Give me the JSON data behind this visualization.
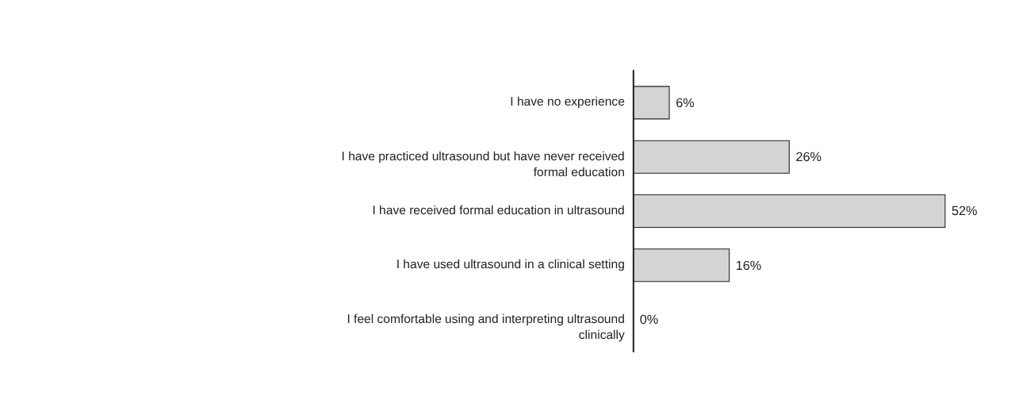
{
  "chart_data": {
    "type": "bar",
    "orientation": "horizontal",
    "categories": [
      "I have no experience",
      "I have practiced ultrasound but have never received formal education",
      "I have received formal education in ultrasound",
      "I have used ultrasound in a clinical setting",
      "I feel comfortable using and interpreting ultrasound clinically"
    ],
    "values": [
      6,
      26,
      52,
      16,
      0
    ],
    "value_labels": [
      "6%",
      "26%",
      "52%",
      "16%",
      "0%"
    ],
    "color": "#d4d4d4"
  }
}
